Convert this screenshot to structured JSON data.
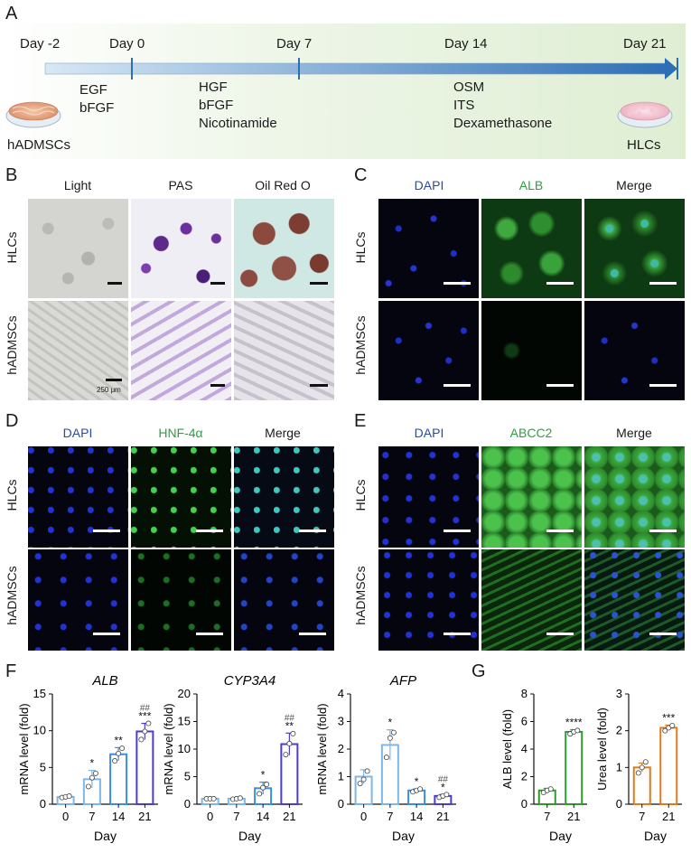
{
  "panels": {
    "A": "A",
    "B": "B",
    "C": "C",
    "D": "D",
    "E": "E",
    "F": "F",
    "G": "G"
  },
  "timeline": {
    "days": [
      "Day -2",
      "Day 0",
      "Day 7",
      "Day 14",
      "Day 21"
    ],
    "start_cells": "hADMSCs",
    "end_cells": "HLCs",
    "stage1": [
      "EGF",
      "bFGF"
    ],
    "stage2": [
      "HGF",
      "bFGF",
      "Nicotinamide"
    ],
    "stage3": [
      "OSM",
      "ITS",
      "Dexamethasone"
    ]
  },
  "panelB": {
    "cols": [
      "Light",
      "PAS",
      "Oil Red O"
    ],
    "rows": [
      "HLCs",
      "hADMSCs"
    ],
    "scale_note": "250 μm"
  },
  "panelC": {
    "cols": [
      "DAPI",
      "ALB",
      "Merge"
    ],
    "rows": [
      "HLCs",
      "hADMSCs"
    ]
  },
  "panelD": {
    "cols": [
      "DAPI",
      "HNF-4α",
      "Merge"
    ],
    "rows": [
      "HLCs",
      "hADMSCs"
    ]
  },
  "panelE": {
    "cols": [
      "DAPI",
      "ABCC2",
      "Merge"
    ],
    "rows": [
      "HLCs",
      "hADMSCs"
    ]
  },
  "colors": {
    "dapi_label": "#2a4d9a",
    "green_label": "#2ea043",
    "bar_light": "#7db7e8",
    "bar_mid": "#3a8ee0",
    "bar_dark": "#1f5fd6",
    "bar_purple": "#4b3bd6",
    "bar_green": "#2e9a2e",
    "bar_orange": "#e07a1a"
  },
  "chart_data": [
    {
      "type": "bar",
      "title": "ALB",
      "categories": [
        "0",
        "7",
        "14",
        "21"
      ],
      "values": [
        1.0,
        3.4,
        6.8,
        9.9
      ],
      "errors": [
        0.1,
        1.2,
        0.9,
        1.1
      ],
      "points": [
        [
          0.9,
          1.0,
          1.1
        ],
        [
          2.4,
          3.6,
          4.2
        ],
        [
          5.9,
          6.9,
          7.6
        ],
        [
          8.8,
          9.9,
          11.0
        ]
      ],
      "annotations": [
        "",
        "*",
        "**",
        "***"
      ],
      "annotations2": [
        "",
        "",
        "",
        "##"
      ],
      "xlabel": "Day",
      "ylabel": "mRNA level (fold)",
      "ylim": [
        0,
        15
      ],
      "yticks": [
        "0",
        "5",
        "10",
        "15"
      ]
    },
    {
      "type": "bar",
      "title": "CYP3A4",
      "categories": [
        "0",
        "7",
        "14",
        "21"
      ],
      "values": [
        1.0,
        1.0,
        2.9,
        10.9
      ],
      "errors": [
        0.1,
        0.1,
        1.1,
        2.0
      ],
      "points": [
        [
          1.0,
          1.0,
          1.0
        ],
        [
          0.9,
          1.0,
          1.1
        ],
        [
          1.9,
          3.0,
          3.6
        ],
        [
          9.0,
          11.0,
          12.8
        ]
      ],
      "annotations": [
        "",
        "",
        "*",
        "**"
      ],
      "annotations2": [
        "",
        "",
        "",
        "##"
      ],
      "xlabel": "Day",
      "ylabel": "mRNA level (fold)",
      "ylim": [
        0,
        20
      ],
      "yticks": [
        "0",
        "5",
        "10",
        "15",
        "20"
      ]
    },
    {
      "type": "bar",
      "title": "AFP",
      "categories": [
        "0",
        "7",
        "14",
        "21"
      ],
      "values": [
        1.0,
        2.15,
        0.5,
        0.3
      ],
      "errors": [
        0.25,
        0.55,
        0.05,
        0.05
      ],
      "points": [
        [
          0.75,
          0.9,
          1.2
        ],
        [
          1.7,
          2.4,
          2.6
        ],
        [
          0.45,
          0.5,
          0.55
        ],
        [
          0.25,
          0.3,
          0.35
        ]
      ],
      "annotations": [
        "",
        "*",
        "*",
        "*"
      ],
      "annotations2": [
        "",
        "",
        "",
        "##"
      ],
      "xlabel": "Day",
      "ylabel": "mRNA level (fold)",
      "ylim": [
        0,
        4
      ],
      "yticks": [
        "0",
        "1",
        "2",
        "3",
        "4"
      ]
    },
    {
      "type": "bar",
      "title": "",
      "categories": [
        "7",
        "21"
      ],
      "values": [
        1.0,
        5.25
      ],
      "errors": [
        0.15,
        0.15
      ],
      "points": [
        [
          0.85,
          1.0,
          1.1
        ],
        [
          5.1,
          5.25,
          5.35
        ]
      ],
      "annotations": [
        "",
        "****"
      ],
      "annotations2": [
        "",
        ""
      ],
      "xlabel": "Day",
      "ylabel": "ALB level (fold)",
      "ylim": [
        0,
        8
      ],
      "yticks": [
        "0",
        "2",
        "4",
        "6",
        "8"
      ]
    },
    {
      "type": "bar",
      "title": "",
      "categories": [
        "7",
        "21"
      ],
      "values": [
        1.0,
        2.08
      ],
      "errors": [
        0.12,
        0.07
      ],
      "points": [
        [
          0.85,
          1.0,
          1.15
        ],
        [
          2.0,
          2.08,
          2.14
        ]
      ],
      "annotations": [
        "",
        "***"
      ],
      "annotations2": [
        "",
        ""
      ],
      "xlabel": "Day",
      "ylabel": "Urea level (fold)",
      "ylim": [
        0,
        3
      ],
      "yticks": [
        "0",
        "1",
        "2",
        "3"
      ]
    }
  ]
}
